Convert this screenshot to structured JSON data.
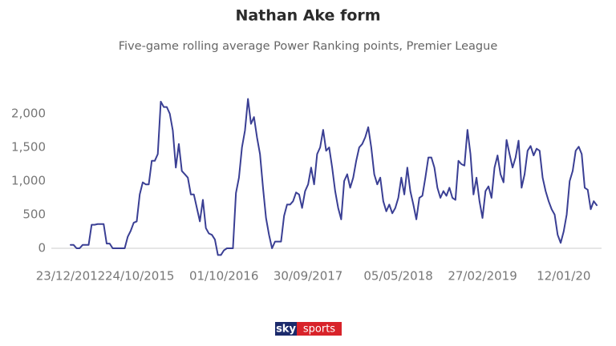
{
  "chart_data": {
    "type": "line",
    "title": "Nathan Ake form",
    "subtitle": "Five-game rolling average Power Ranking points, Premier League",
    "color": "#3a3f94",
    "grid": false,
    "ylim": [
      -150,
      2300
    ],
    "yticks": [
      0,
      500,
      {
        "value": 1000,
        "label": "1,000"
      },
      {
        "value": 1500,
        "label": "1,500"
      },
      {
        "value": 2000,
        "label": "2,000"
      }
    ],
    "categories": [
      "23/12/2012",
      null,
      null,
      null,
      null,
      null,
      null,
      null,
      null,
      null,
      null,
      null,
      null,
      null,
      null,
      null,
      null,
      null,
      null,
      null,
      null,
      null,
      null,
      "24/10/2015",
      null,
      null,
      null,
      null,
      null,
      null,
      null,
      null,
      null,
      null,
      null,
      null,
      null,
      null,
      null,
      null,
      null,
      null,
      null,
      null,
      null,
      null,
      null,
      null,
      null,
      null,
      null,
      "01/10/2016",
      null,
      null,
      null,
      null,
      null,
      null,
      null,
      null,
      null,
      null,
      null,
      null,
      null,
      null,
      null,
      null,
      null,
      null,
      null,
      null,
      null,
      null,
      null,
      null,
      null,
      null,
      null,
      "30/09/2017",
      null,
      null,
      null,
      null,
      null,
      null,
      null,
      null,
      null,
      null,
      null,
      null,
      null,
      null,
      null,
      null,
      null,
      null,
      null,
      null,
      null,
      null,
      null,
      null,
      null,
      null,
      null,
      null,
      null,
      "05/05/2018",
      null,
      null,
      null,
      null,
      null,
      null,
      null,
      null,
      null,
      null,
      null,
      null,
      null,
      null,
      null,
      null,
      null,
      null,
      null,
      null,
      null,
      null,
      null,
      null,
      null,
      null,
      null,
      "27/02/2019",
      null,
      null,
      null,
      null,
      null,
      null,
      null,
      null,
      null,
      null,
      null,
      null,
      null,
      null,
      null,
      null,
      null,
      null,
      null,
      null,
      null,
      null,
      null,
      null,
      null,
      null,
      "12/01/20",
      null,
      null,
      null,
      null,
      null,
      null,
      null,
      null,
      null,
      null,
      null
    ],
    "values": [
      50,
      50,
      0,
      0,
      50,
      50,
      50,
      350,
      350,
      360,
      360,
      360,
      70,
      70,
      0,
      0,
      0,
      0,
      0,
      170,
      260,
      380,
      400,
      800,
      980,
      950,
      950,
      1300,
      1300,
      1400,
      2180,
      2100,
      2100,
      2000,
      1750,
      1200,
      1550,
      1150,
      1100,
      1050,
      800,
      800,
      600,
      400,
      720,
      300,
      220,
      200,
      130,
      -100,
      -100,
      -30,
      0,
      0,
      0,
      820,
      1050,
      1500,
      1750,
      2220,
      1850,
      1950,
      1650,
      1400,
      900,
      450,
      200,
      0,
      100,
      100,
      100,
      480,
      650,
      650,
      700,
      830,
      800,
      600,
      850,
      950,
      1200,
      950,
      1400,
      1500,
      1760,
      1450,
      1500,
      1200,
      850,
      600,
      430,
      1000,
      1100,
      900,
      1050,
      1300,
      1500,
      1550,
      1650,
      1800,
      1500,
      1100,
      950,
      1050,
      700,
      550,
      650,
      520,
      600,
      750,
      1050,
      800,
      1200,
      850,
      650,
      430,
      750,
      780,
      1050,
      1350,
      1350,
      1200,
      900,
      750,
      850,
      780,
      900,
      750,
      720,
      1300,
      1250,
      1230,
      1760,
      1400,
      800,
      1050,
      700,
      450,
      850,
      920,
      750,
      1200,
      1380,
      1100,
      980,
      1610,
      1400,
      1200,
      1350,
      1600,
      900,
      1100,
      1450,
      1520,
      1380,
      1480,
      1450,
      1050,
      850,
      700,
      580,
      500,
      200,
      80,
      250,
      500,
      1000,
      1150,
      1450,
      1510,
      1400,
      900,
      870,
      580,
      700,
      640
    ]
  },
  "branding": {
    "sky": "sky",
    "sports": "sports"
  }
}
